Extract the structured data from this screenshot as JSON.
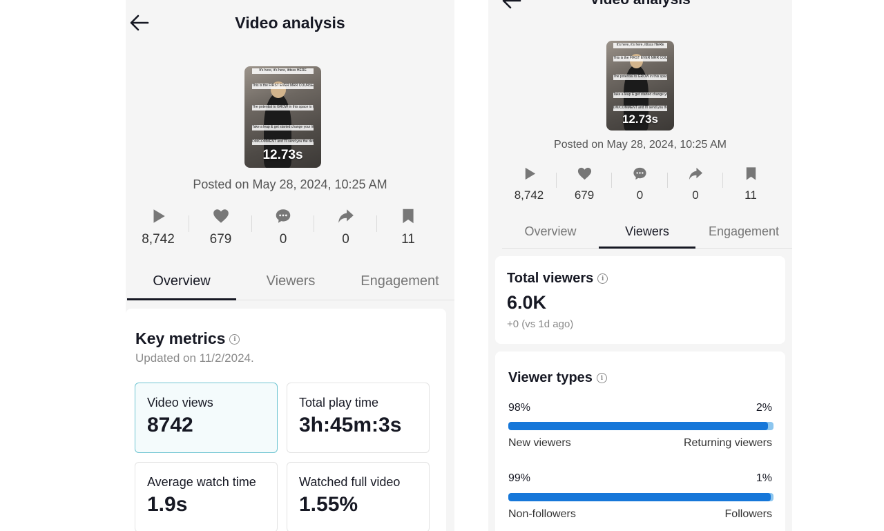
{
  "header": {
    "title": "Video analysis"
  },
  "video": {
    "duration": "12.73s",
    "posted": "Posted on May 28, 2024, 10:25 AM",
    "captions": [
      "It's here, it's here, itttsss HERE",
      "This is the FIRST EVER MRR COURSE IN THE UK",
      "The potential to GROW in this space is huge because it's the FIRST EVER!",
      "Take a leap & get started change your life !",
      "DM/COMMENT and I'll send you the details"
    ]
  },
  "stats": [
    {
      "icon": "play-icon",
      "value": "8,742"
    },
    {
      "icon": "heart-icon",
      "value": "679"
    },
    {
      "icon": "comment-icon",
      "value": "0"
    },
    {
      "icon": "share-icon",
      "value": "0"
    },
    {
      "icon": "bookmark-icon",
      "value": "11"
    }
  ],
  "tabs": [
    "Overview",
    "Viewers",
    "Engagement"
  ],
  "left": {
    "active_tab": "Overview",
    "key_metrics": {
      "title": "Key metrics",
      "updated": "Updated on 11/2/2024.",
      "metrics": [
        {
          "label": "Video views",
          "value": "8742"
        },
        {
          "label": "Total play time",
          "value": "3h:45m:3s"
        },
        {
          "label": "Average watch time",
          "value": "1.9s"
        },
        {
          "label": "Watched full video",
          "value": "1.55%"
        }
      ]
    }
  },
  "right": {
    "active_tab": "Viewers",
    "total_viewers": {
      "title": "Total viewers",
      "value": "6.0K",
      "change": "+0 (vs 1d ago)"
    },
    "viewer_types": {
      "title": "Viewer types",
      "bars": [
        {
          "left_pct": "98%",
          "right_pct": "2%",
          "left_label": "New viewers",
          "right_label": "Returning viewers",
          "fraction": 0.98
        },
        {
          "left_pct": "99%",
          "right_pct": "1%",
          "left_label": "Non-followers",
          "right_label": "Followers",
          "fraction": 0.99
        }
      ]
    }
  },
  "colors": {
    "bar_primary": "#1677d9",
    "bar_secondary": "#8cc6ef",
    "selected_border": "#6fc5d2"
  }
}
